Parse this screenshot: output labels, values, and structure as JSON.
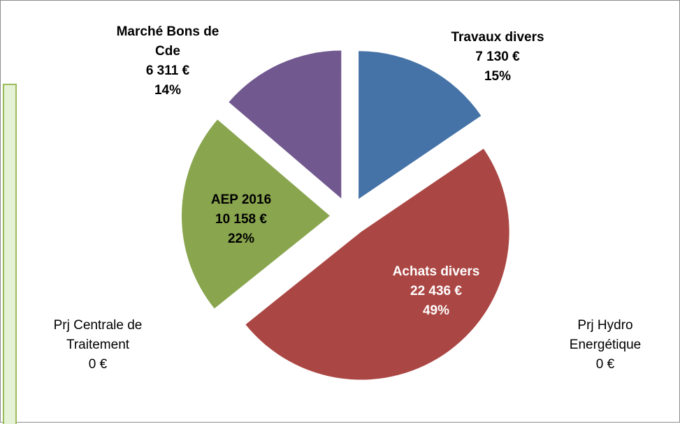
{
  "chart_data": {
    "type": "pie",
    "categories": [
      "Travaux divers",
      "Achats divers",
      "Prj Hydro Energétique",
      "Prj Centrale de Traitement",
      "AEP 2016",
      "Marché Bons de Cde"
    ],
    "values": [
      7130,
      22436,
      0,
      0,
      10158,
      6311
    ],
    "value_labels": [
      "7 130 €",
      "22 436 €",
      "0 €",
      "0 €",
      "10 158 €",
      "6 311 €"
    ],
    "percent_labels": [
      "15%",
      "49%",
      null,
      null,
      "22%",
      "14%"
    ],
    "colors": [
      "#4572a7",
      "#aa4643",
      "#dbe8c4",
      "#80699b",
      "#89a54e",
      "#71588f"
    ],
    "exploded": true
  }
}
